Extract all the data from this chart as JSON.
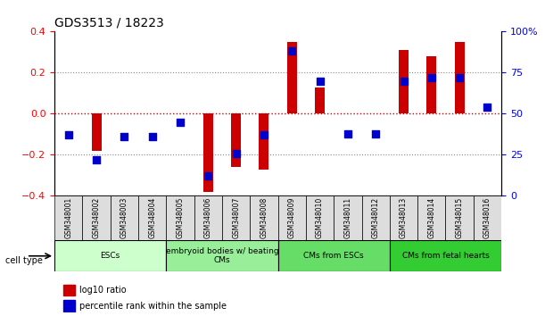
{
  "title": "GDS3513 / 18223",
  "samples": [
    "GSM348001",
    "GSM348002",
    "GSM348003",
    "GSM348004",
    "GSM348005",
    "GSM348006",
    "GSM348007",
    "GSM348008",
    "GSM348009",
    "GSM348010",
    "GSM348011",
    "GSM348012",
    "GSM348013",
    "GSM348014",
    "GSM348015",
    "GSM348016"
  ],
  "log10_ratio": [
    0.0,
    -0.18,
    0.0,
    0.0,
    0.0,
    -0.38,
    -0.26,
    -0.27,
    0.35,
    0.13,
    0.0,
    0.0,
    0.31,
    0.28,
    0.35,
    0.0
  ],
  "percentile_rank": [
    37,
    22,
    36,
    36,
    45,
    12,
    26,
    37,
    88,
    70,
    38,
    38,
    70,
    72,
    72,
    54
  ],
  "ylim_left": [
    -0.4,
    0.4
  ],
  "ylim_right": [
    0,
    100
  ],
  "yticks_left": [
    -0.4,
    -0.2,
    0.0,
    0.2,
    0.4
  ],
  "yticks_right": [
    0,
    25,
    50,
    75,
    100
  ],
  "ytick_labels_right": [
    "0",
    "25",
    "50",
    "75",
    "100%"
  ],
  "cell_type_groups": [
    {
      "label": "ESCs",
      "start": 0,
      "end": 4,
      "color": "#ccffcc"
    },
    {
      "label": "embryoid bodies w/ beating\nCMs",
      "start": 4,
      "end": 8,
      "color": "#99ee99"
    },
    {
      "label": "CMs from ESCs",
      "start": 8,
      "end": 12,
      "color": "#66dd66"
    },
    {
      "label": "CMs from fetal hearts",
      "start": 12,
      "end": 16,
      "color": "#33cc33"
    }
  ],
  "bar_color": "#cc0000",
  "dot_color": "#0000cc",
  "dotted_line_color": "#888888",
  "zero_line_color": "#cc0000",
  "bg_color": "#ffffff",
  "plot_bg_color": "#ffffff",
  "grid_color": "#aaaaaa"
}
